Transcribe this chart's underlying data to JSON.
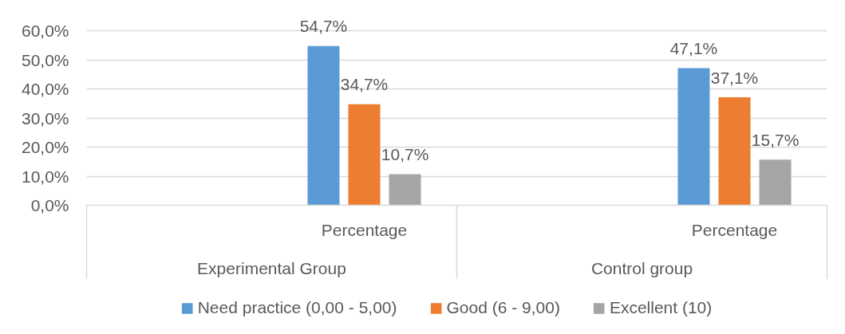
{
  "chart_data": {
    "type": "bar",
    "categories": [
      null,
      "Percentage",
      null,
      "Percentage"
    ],
    "series": [
      {
        "name": "Need practice (0,00 - 5,00)",
        "color": "#5b9bd5",
        "values": [
          null,
          54.7,
          null,
          47.1
        ],
        "value_labels": [
          null,
          "54,7%",
          null,
          "47,1%"
        ]
      },
      {
        "name": "Good (6 - 9,00)",
        "color": "#ed7d31",
        "values": [
          null,
          34.7,
          null,
          37.1
        ],
        "value_labels": [
          null,
          "34,7%",
          null,
          "37,1%"
        ]
      },
      {
        "name": "Excellent (10)",
        "color": "#a5a5a5",
        "values": [
          null,
          10.7,
          null,
          15.7
        ],
        "value_labels": [
          null,
          "10,7%",
          null,
          "15,7%"
        ]
      }
    ],
    "ylim": [
      0,
      60
    ],
    "yticks": [
      {
        "value": 0,
        "label": "0,0%"
      },
      {
        "value": 10,
        "label": "10,0%"
      },
      {
        "value": 20,
        "label": "20,0%"
      },
      {
        "value": 30,
        "label": "30,0%"
      },
      {
        "value": 40,
        "label": "40,0%"
      },
      {
        "value": 50,
        "label": "50,0%"
      },
      {
        "value": 60,
        "label": "60,0%"
      }
    ],
    "grid": "y",
    "legend": "bottom",
    "annotations": [
      "Experimental Group",
      "Control group"
    ]
  }
}
